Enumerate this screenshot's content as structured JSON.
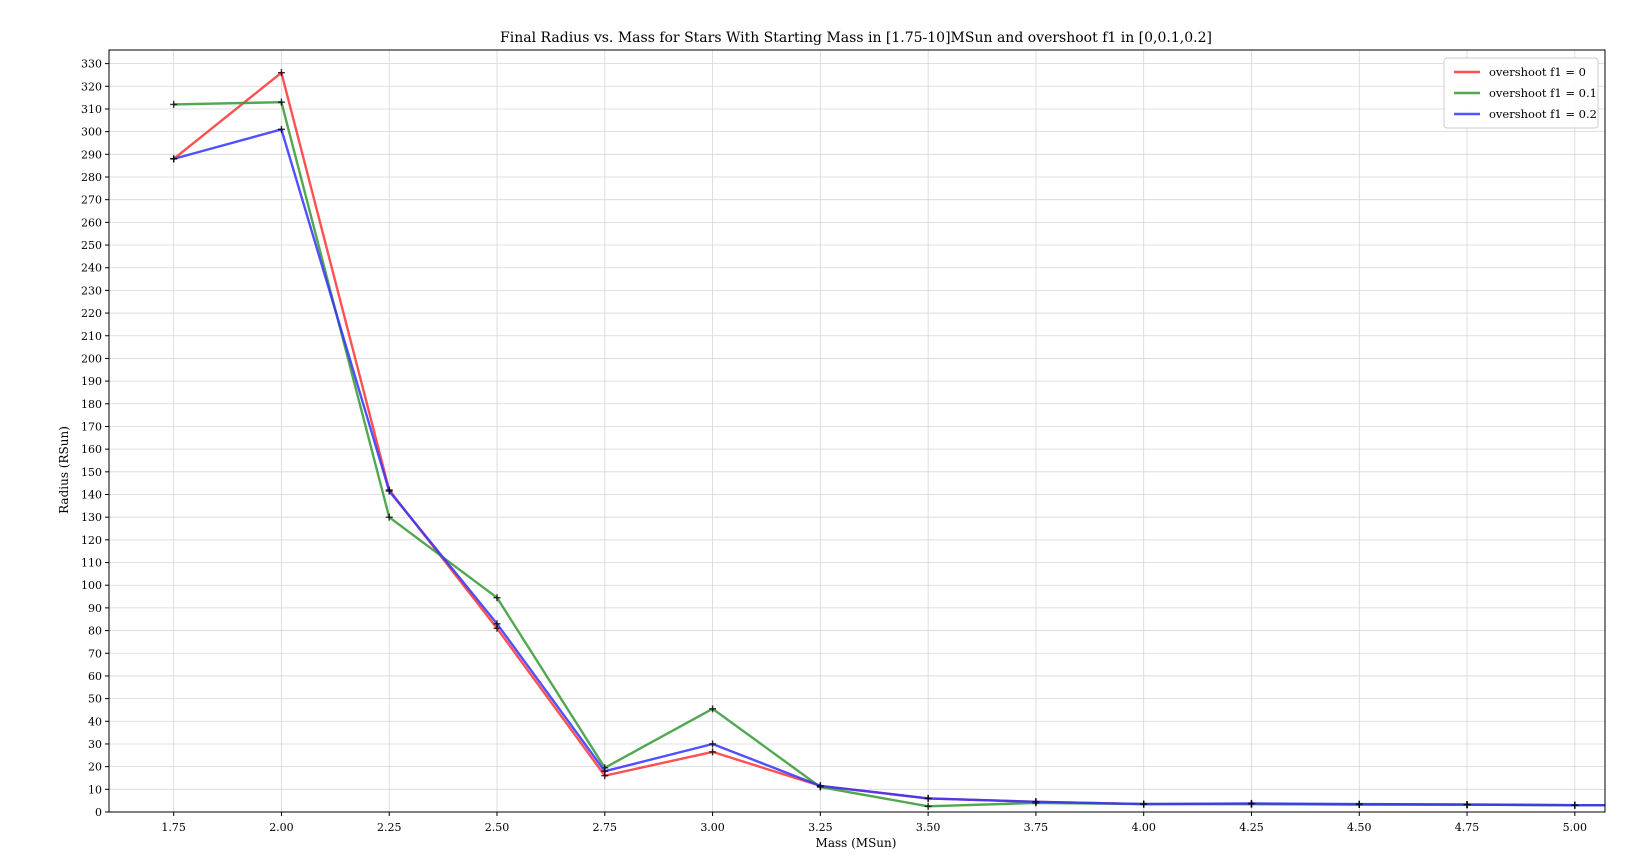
{
  "chart_data": {
    "type": "line",
    "title": "Final Radius vs. Mass for Stars With Starting Mass in [1.75-10]MSun and overshoot f1 in [0,0.1,0.2]",
    "xlabel": "Mass (MSun)",
    "ylabel": "Radius (RSun)",
    "xlim": [
      1.6,
      5.07
    ],
    "ylim": [
      0,
      336
    ],
    "x_ticks": [
      "1.75",
      "2.00",
      "2.25",
      "2.50",
      "2.75",
      "3.00",
      "3.25",
      "3.50",
      "3.75",
      "4.00",
      "4.25",
      "4.50",
      "4.75",
      "5.00"
    ],
    "x_tick_values": [
      1.75,
      2.0,
      2.25,
      2.5,
      2.75,
      3.0,
      3.25,
      3.5,
      3.75,
      4.0,
      4.25,
      4.5,
      4.75,
      5.0
    ],
    "y_ticks": [
      0,
      10,
      20,
      30,
      40,
      50,
      60,
      70,
      80,
      90,
      100,
      110,
      120,
      130,
      140,
      150,
      160,
      170,
      180,
      190,
      200,
      210,
      220,
      230,
      240,
      250,
      260,
      270,
      280,
      290,
      300,
      310,
      320,
      330
    ],
    "grid": true,
    "legend_position": "top-right",
    "x": [
      1.75,
      2.0,
      2.25,
      2.5,
      2.75,
      3.0,
      3.25,
      3.5,
      3.75,
      4.0,
      4.25,
      4.5,
      4.75,
      5.0,
      5.07
    ],
    "series": [
      {
        "name": "overshoot f1 = 0",
        "color": "#ff3333",
        "values": [
          288,
          326,
          142,
          81,
          16,
          26.5,
          11.5,
          6,
          4.5,
          3.5,
          3.5,
          3.3,
          3.2,
          3,
          3
        ]
      },
      {
        "name": "overshoot f1 = 0.1",
        "color": "#339933",
        "values": [
          312,
          313,
          130,
          94.5,
          19.5,
          45.5,
          11,
          2.5,
          4,
          3.5,
          3.5,
          3.3,
          3.2,
          3,
          3
        ]
      },
      {
        "name": "overshoot f1 = 0.2",
        "color": "#3333ff",
        "values": [
          288,
          301,
          141.5,
          83,
          18,
          30,
          11.5,
          6,
          4.5,
          3.5,
          3.8,
          3.5,
          3.3,
          3,
          3
        ]
      }
    ]
  }
}
